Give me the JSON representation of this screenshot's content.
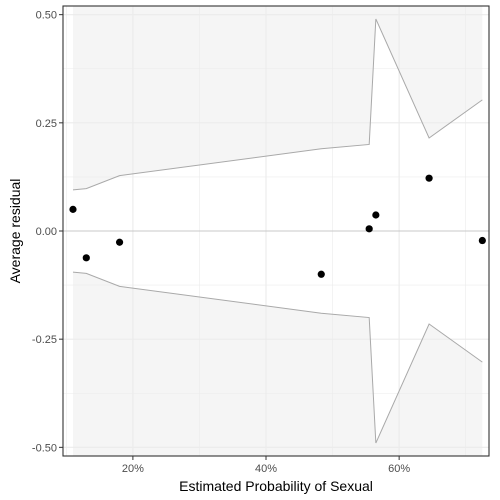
{
  "chart_data": {
    "type": "scatter",
    "title": "",
    "xlabel": "Estimated Probability of Sexual",
    "ylabel": "Average residual",
    "xlim": [
      0.095,
      0.735
    ],
    "ylim": [
      -0.52,
      0.52
    ],
    "x_ticks": [
      {
        "value": 0.2,
        "label": "20%"
      },
      {
        "value": 0.4,
        "label": "40%"
      },
      {
        "value": 0.6,
        "label": "60%"
      }
    ],
    "y_ticks": [
      {
        "value": 0.5,
        "label": "0.50"
      },
      {
        "value": 0.25,
        "label": "0.25"
      },
      {
        "value": 0.0,
        "label": "0.00"
      },
      {
        "value": -0.25,
        "label": "-0.25"
      },
      {
        "value": -0.5,
        "label": "-0.50"
      }
    ],
    "grid": true,
    "zero_line": 0,
    "points": [
      {
        "x": 0.11,
        "y": 0.05
      },
      {
        "x": 0.13,
        "y": -0.062
      },
      {
        "x": 0.18,
        "y": -0.026
      },
      {
        "x": 0.483,
        "y": -0.1
      },
      {
        "x": 0.555,
        "y": 0.005
      },
      {
        "x": 0.565,
        "y": 0.037
      },
      {
        "x": 0.645,
        "y": 0.122
      },
      {
        "x": 0.725,
        "y": -0.022
      }
    ],
    "band": [
      {
        "x": 0.11,
        "y": 0.095
      },
      {
        "x": 0.13,
        "y": 0.098
      },
      {
        "x": 0.18,
        "y": 0.128
      },
      {
        "x": 0.483,
        "y": 0.19
      },
      {
        "x": 0.555,
        "y": 0.2
      },
      {
        "x": 0.565,
        "y": 0.49
      },
      {
        "x": 0.645,
        "y": 0.215
      },
      {
        "x": 0.725,
        "y": 0.303
      }
    ],
    "colors": {
      "panel_background": "#ffffff",
      "band_fill": "#f5f5f5",
      "band_line": "#a9a9a9",
      "grid": "#ebebeb",
      "zero_line": "#c8c8c8",
      "border": "#333333",
      "points": "#000000"
    }
  }
}
